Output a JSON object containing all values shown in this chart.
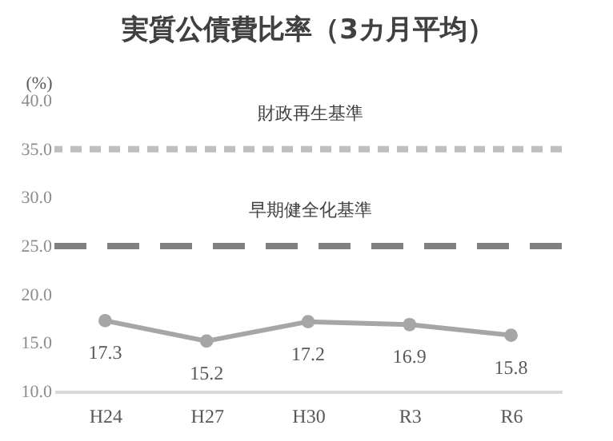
{
  "chart_data": {
    "type": "line",
    "title": "実質公債費比率（3カ月平均）",
    "ylabel": "(%)",
    "categories": [
      "H24",
      "H27",
      "H30",
      "R3",
      "R6"
    ],
    "series": [
      {
        "color": "#a6a6a6",
        "values": [
          17.3,
          15.2,
          17.2,
          16.9,
          15.8
        ]
      }
    ],
    "ylim": [
      10,
      40
    ],
    "yticks": [
      {
        "value": 10,
        "label": "10.0"
      },
      {
        "value": 15,
        "label": "15.0"
      },
      {
        "value": 20,
        "label": "20.0"
      },
      {
        "value": 25,
        "label": "25.0"
      },
      {
        "value": 30,
        "label": "30.0"
      },
      {
        "value": 35,
        "label": "35.0"
      },
      {
        "value": 40,
        "label": "40.0"
      }
    ],
    "ref_lines": [
      {
        "axis": "y",
        "value": 35,
        "label": "財政再生基準",
        "color": "#bfbfbf",
        "line_style": "dashed"
      },
      {
        "axis": "y",
        "value": 25,
        "label": "早期健全化基準",
        "color": "#808080",
        "line_style": "dashed"
      }
    ],
    "data_labels": true,
    "grid": false,
    "marker": "circle"
  }
}
